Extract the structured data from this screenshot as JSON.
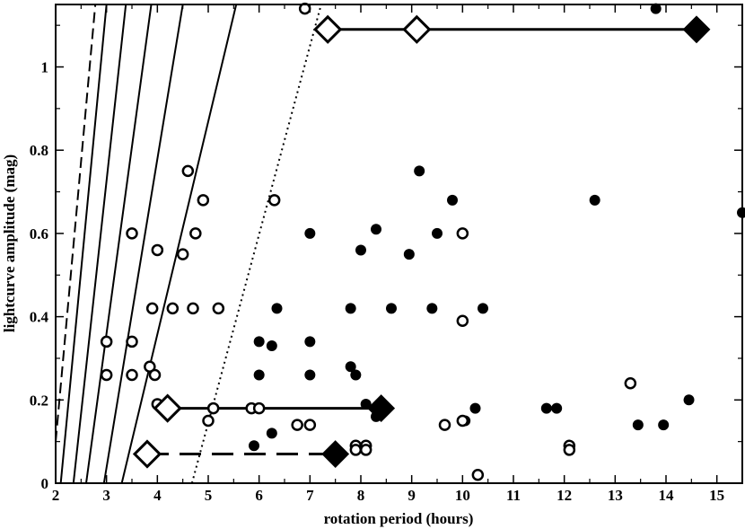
{
  "chart_data": {
    "type": "scatter",
    "title": "",
    "xlabel": "rotation period (hours)",
    "ylabel": "lightcurve amplitude (mag)",
    "xlim": [
      2,
      15.5
    ],
    "ylim": [
      0,
      1.15
    ],
    "grid": false,
    "x_ticks": [
      "2",
      "3",
      "4",
      "5",
      "6",
      "7",
      "8",
      "9",
      "10",
      "11",
      "12",
      "13",
      "14",
      "15"
    ],
    "y_ticks": [
      "0",
      "0.2",
      "0.4",
      "0.6",
      "0.8",
      "1"
    ],
    "series": [
      {
        "marker": "filled-circle",
        "color": "#000000",
        "points": [
          [
            5.9,
            0.09
          ],
          [
            6.0,
            0.34
          ],
          [
            6.0,
            0.26
          ],
          [
            6.25,
            0.33
          ],
          [
            6.25,
            0.12
          ],
          [
            6.35,
            0.42
          ],
          [
            7.0,
            0.6
          ],
          [
            7.0,
            0.34
          ],
          [
            7.0,
            0.26
          ],
          [
            7.8,
            0.42
          ],
          [
            7.8,
            0.28
          ],
          [
            7.9,
            0.26
          ],
          [
            8.0,
            0.56
          ],
          [
            8.1,
            0.19
          ],
          [
            8.3,
            0.16
          ],
          [
            8.3,
            0.61
          ],
          [
            8.6,
            0.42
          ],
          [
            8.95,
            0.55
          ],
          [
            9.15,
            0.75
          ],
          [
            9.4,
            0.42
          ],
          [
            9.5,
            0.6
          ],
          [
            9.8,
            0.68
          ],
          [
            10.05,
            0.15
          ],
          [
            10.25,
            0.18
          ],
          [
            10.4,
            0.42
          ],
          [
            11.65,
            0.18
          ],
          [
            11.85,
            0.18
          ],
          [
            12.6,
            0.68
          ],
          [
            13.45,
            0.14
          ],
          [
            13.8,
            1.14
          ],
          [
            13.95,
            0.14
          ],
          [
            14.45,
            0.2
          ],
          [
            15.5,
            0.65
          ]
        ]
      },
      {
        "marker": "open-circle",
        "color": "#000000",
        "points": [
          [
            3.0,
            0.34
          ],
          [
            3.0,
            0.26
          ],
          [
            3.5,
            0.6
          ],
          [
            3.5,
            0.34
          ],
          [
            3.5,
            0.26
          ],
          [
            3.85,
            0.28
          ],
          [
            3.9,
            0.42
          ],
          [
            3.95,
            0.26
          ],
          [
            4.0,
            0.56
          ],
          [
            4.0,
            0.19
          ],
          [
            4.3,
            0.42
          ],
          [
            4.5,
            0.55
          ],
          [
            4.6,
            0.75
          ],
          [
            4.7,
            0.42
          ],
          [
            4.75,
            0.6
          ],
          [
            4.9,
            0.68
          ],
          [
            5.0,
            0.15
          ],
          [
            5.1,
            0.18
          ],
          [
            5.2,
            0.42
          ],
          [
            5.85,
            0.18
          ],
          [
            6.0,
            0.18
          ],
          [
            6.3,
            0.68
          ],
          [
            6.75,
            0.14
          ],
          [
            6.9,
            1.14
          ],
          [
            7.0,
            0.14
          ],
          [
            7.9,
            0.09
          ],
          [
            7.9,
            0.08
          ],
          [
            8.1,
            0.09
          ],
          [
            8.1,
            0.08
          ],
          [
            9.65,
            0.14
          ],
          [
            10.0,
            0.6
          ],
          [
            10.0,
            0.39
          ],
          [
            10.0,
            0.15
          ],
          [
            10.3,
            0.02
          ],
          [
            12.1,
            0.09
          ],
          [
            12.1,
            0.08
          ],
          [
            13.3,
            0.24
          ]
        ]
      },
      {
        "marker": "diamond-segments",
        "color": "#000000",
        "segments": [
          {
            "y": 1.09,
            "line": "solid",
            "open_x": [
              7.35,
              9.1
            ],
            "filled_x": [
              14.6
            ]
          },
          {
            "y": 0.18,
            "line": "solid",
            "open_x": [
              4.2
            ],
            "filled_x": [
              8.4
            ]
          },
          {
            "y": 0.07,
            "line": "dashed",
            "open_x": [
              3.8
            ],
            "filled_x": [
              7.5
            ]
          }
        ]
      }
    ],
    "reference_curves": [
      {
        "style": "dashed",
        "p0": [
          2.0,
          0.1
        ],
        "p1": [
          2.78,
          1.15
        ]
      },
      {
        "style": "solid",
        "p0": [
          2.1,
          0.0
        ],
        "p1": [
          3.0,
          1.15
        ]
      },
      {
        "style": "solid",
        "p0": [
          2.35,
          0.0
        ],
        "p1": [
          3.38,
          1.15
        ]
      },
      {
        "style": "solid",
        "p0": [
          2.6,
          0.0
        ],
        "p1": [
          3.88,
          1.15
        ]
      },
      {
        "style": "solid",
        "p0": [
          2.95,
          0.0
        ],
        "p1": [
          4.5,
          1.15
        ]
      },
      {
        "style": "solid",
        "p0": [
          3.3,
          0.0
        ],
        "p1": [
          5.55,
          1.15
        ]
      },
      {
        "style": "dotted",
        "p0": [
          4.68,
          0.0
        ],
        "p1": [
          7.22,
          1.15
        ]
      }
    ]
  }
}
